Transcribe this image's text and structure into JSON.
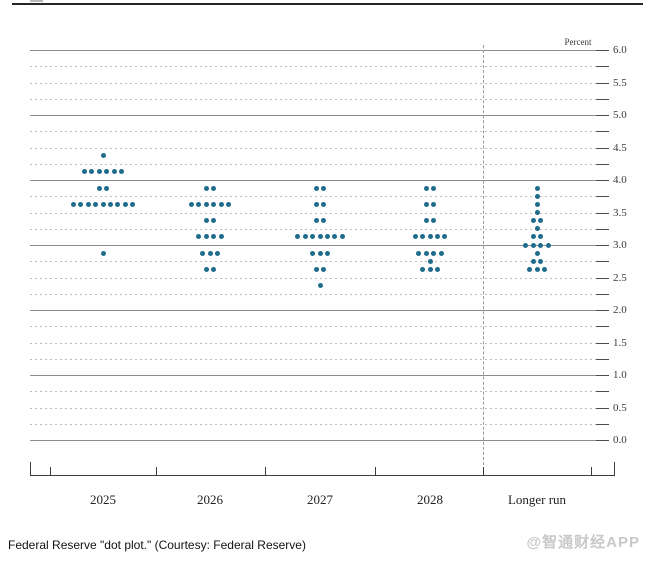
{
  "caption": "Federal Reserve \"dot plot.\" (Courtesy: Federal Reserve)",
  "watermark": "@智通财经APP",
  "colors": {
    "dot": "#1e6b8b",
    "solid_grid": "#8d8d8d",
    "dotted_grid": "#bdbdbd",
    "axis": "#3c3c3c",
    "watermark": "#c9c9c9"
  },
  "chart_data": {
    "type": "scatter",
    "subtype": "fomc-dot-plot",
    "title": "",
    "ylabel": "Percent",
    "y_axis": {
      "min": 0.0,
      "max": 6.0,
      "label_step": 0.5,
      "grid_step": 0.25,
      "tick_labels": [
        "6.0",
        "5.5",
        "5.0",
        "4.5",
        "4.0",
        "3.5",
        "3.0",
        "2.5",
        "2.0",
        "1.5",
        "1.0",
        "0.5",
        "0.0"
      ],
      "grid": true,
      "labels_side": "right"
    },
    "x_axis": {
      "categories": [
        "2025",
        "2026",
        "2027",
        "2028",
        "Longer run"
      ],
      "separator_before": "Longer run"
    },
    "columns": [
      {
        "label": "2025",
        "dots": [
          {
            "value": 4.375,
            "count": 1
          },
          {
            "value": 4.125,
            "count": 6
          },
          {
            "value": 3.875,
            "count": 2
          },
          {
            "value": 3.625,
            "count": 9
          },
          {
            "value": 2.875,
            "count": 1
          }
        ]
      },
      {
        "label": "2026",
        "dots": [
          {
            "value": 3.875,
            "count": 2
          },
          {
            "value": 3.625,
            "count": 6
          },
          {
            "value": 3.375,
            "count": 2
          },
          {
            "value": 3.125,
            "count": 4
          },
          {
            "value": 2.875,
            "count": 3
          },
          {
            "value": 2.625,
            "count": 2
          }
        ]
      },
      {
        "label": "2027",
        "dots": [
          {
            "value": 3.875,
            "count": 2
          },
          {
            "value": 3.625,
            "count": 2
          },
          {
            "value": 3.375,
            "count": 2
          },
          {
            "value": 3.125,
            "count": 7
          },
          {
            "value": 2.875,
            "count": 3
          },
          {
            "value": 2.625,
            "count": 2
          },
          {
            "value": 2.375,
            "count": 1
          }
        ]
      },
      {
        "label": "2028",
        "dots": [
          {
            "value": 3.875,
            "count": 2
          },
          {
            "value": 3.625,
            "count": 2
          },
          {
            "value": 3.375,
            "count": 2
          },
          {
            "value": 3.125,
            "count": 5
          },
          {
            "value": 2.875,
            "count": 4
          },
          {
            "value": 2.75,
            "count": 1
          },
          {
            "value": 2.625,
            "count": 3
          }
        ]
      },
      {
        "label": "Longer run",
        "dots": [
          {
            "value": 3.875,
            "count": 1
          },
          {
            "value": 3.75,
            "count": 1
          },
          {
            "value": 3.625,
            "count": 1
          },
          {
            "value": 3.5,
            "count": 1
          },
          {
            "value": 3.375,
            "count": 2
          },
          {
            "value": 3.25,
            "count": 1
          },
          {
            "value": 3.125,
            "count": 2
          },
          {
            "value": 3.0,
            "count": 4
          },
          {
            "value": 2.875,
            "count": 1
          },
          {
            "value": 2.75,
            "count": 2
          },
          {
            "value": 2.625,
            "count": 3
          }
        ]
      }
    ]
  }
}
